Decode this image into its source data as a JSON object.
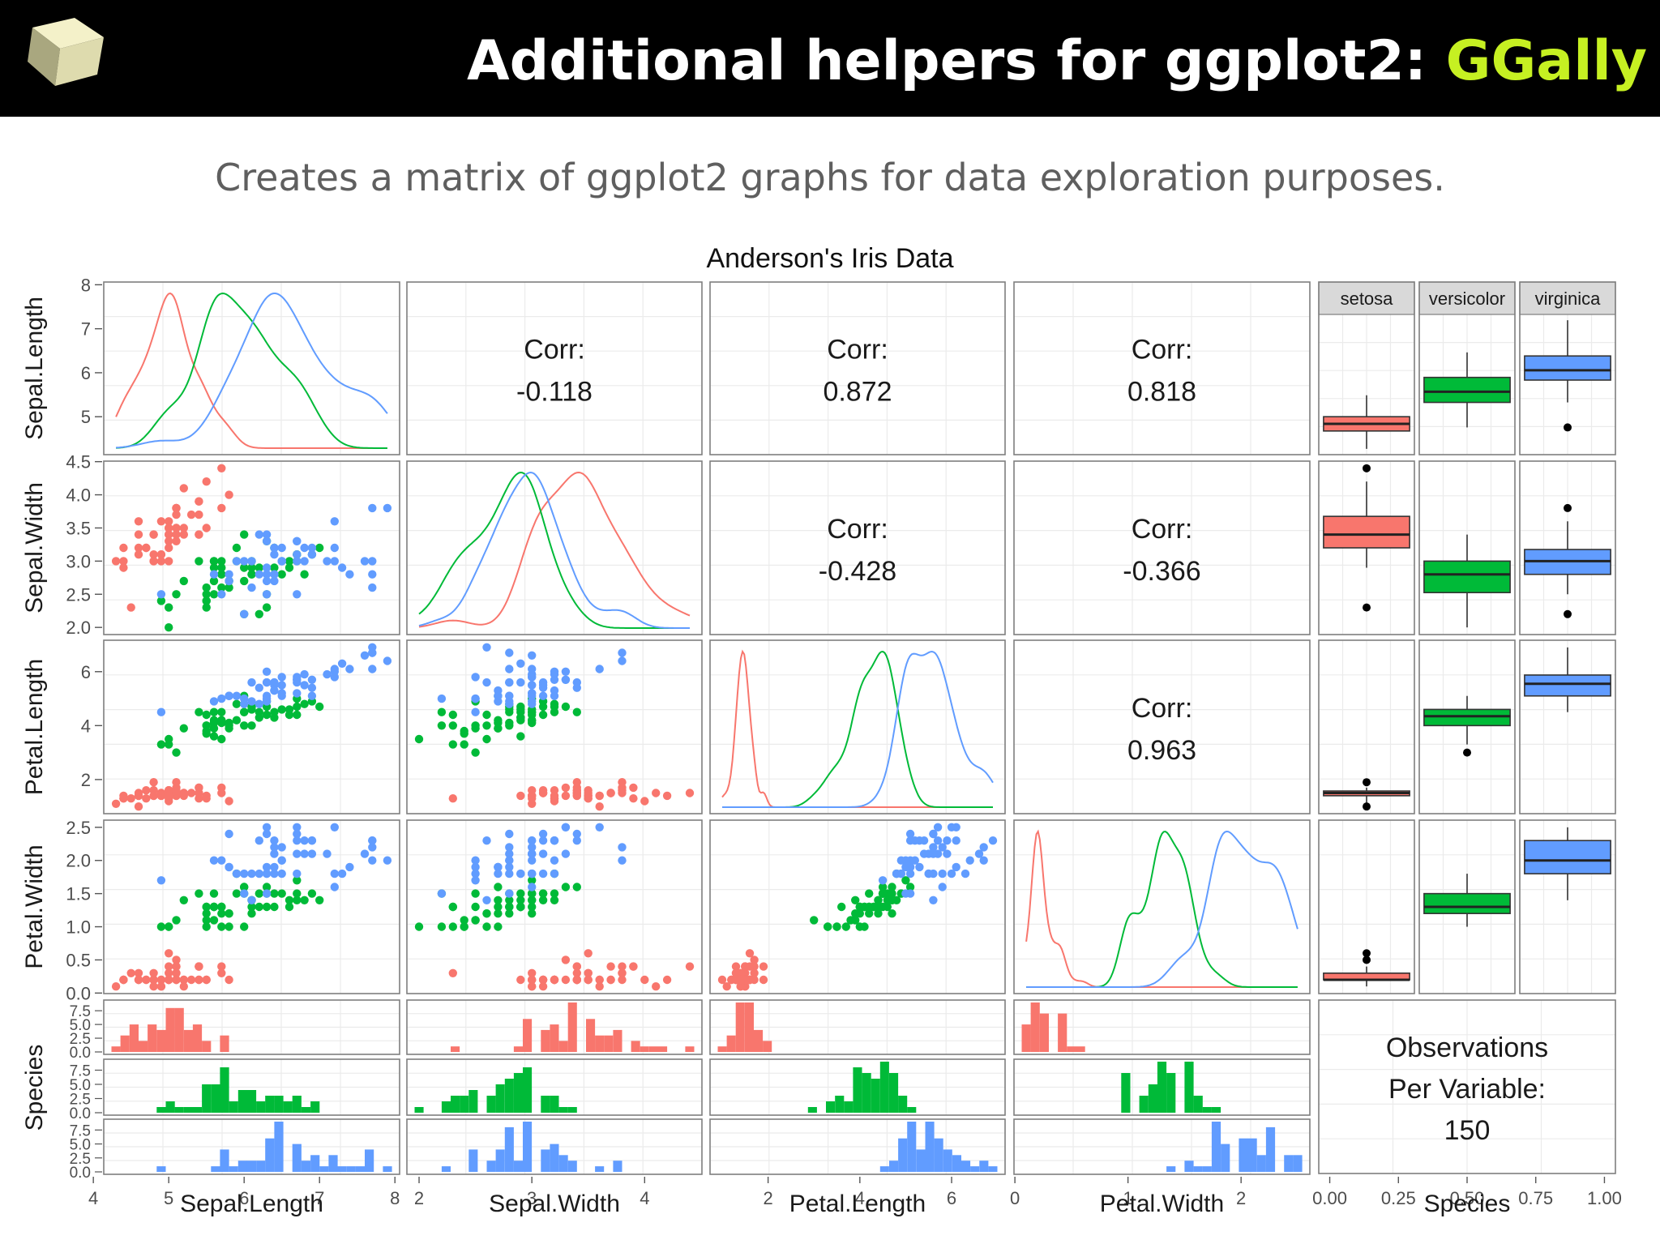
{
  "slide": {
    "title_main": "Additional helpers for ggplot2: ",
    "title_accent": "GGally",
    "subtitle": "Creates a matrix of ggplot2 graphs for data exploration purposes.",
    "colors": {
      "background_bar": "#000000",
      "title": "#ffffff",
      "accent": "#c6f022",
      "subtitle": "#5f5f5f"
    },
    "icons": [
      "cube-icon"
    ]
  },
  "chart_data": {
    "type": "scatterplot-matrix",
    "title": "Anderson's Iris Data",
    "variables": [
      "Sepal.Length",
      "Sepal.Width",
      "Petal.Length",
      "Petal.Width",
      "Species"
    ],
    "species": [
      "setosa",
      "versicolor",
      "virginica"
    ],
    "colors": {
      "setosa": "#f8766d",
      "versicolor": "#00ba38",
      "virginica": "#619cff"
    },
    "axes": {
      "Sepal.Length": {
        "range": [
          4.3,
          7.9
        ],
        "ticks": [
          "4",
          "5",
          "6",
          "7",
          "8"
        ],
        "y_ticks": [
          "5",
          "6",
          "7",
          "8"
        ]
      },
      "Sepal.Width": {
        "range": [
          2.0,
          4.4
        ],
        "ticks": [
          "2",
          "3",
          "4"
        ],
        "y_ticks": [
          "2.0",
          "2.5",
          "3.0",
          "3.5",
          "4.0",
          "4.5"
        ]
      },
      "Petal.Length": {
        "range": [
          1.0,
          6.9
        ],
        "ticks": [
          "2",
          "4",
          "6"
        ],
        "y_ticks": [
          "2",
          "4",
          "6"
        ]
      },
      "Petal.Width": {
        "range": [
          0.1,
          2.5
        ],
        "ticks": [
          "0",
          "1",
          "2"
        ],
        "y_ticks": [
          "0.0",
          "0.5",
          "1.0",
          "1.5",
          "2.0",
          "2.5"
        ]
      },
      "Species": {
        "range": [
          0,
          1
        ],
        "ticks": [
          "0.00",
          "0.25",
          "0.50",
          "0.75",
          "1.00"
        ],
        "hist_ticks": [
          "0.0",
          "2.5",
          "5.0",
          "7.5"
        ]
      }
    },
    "correlations": [
      {
        "row": "Sepal.Length",
        "col": "Sepal.Width",
        "label": "Corr:",
        "value": "-0.118"
      },
      {
        "row": "Sepal.Length",
        "col": "Petal.Length",
        "label": "Corr:",
        "value": "0.872"
      },
      {
        "row": "Sepal.Length",
        "col": "Petal.Width",
        "label": "Corr:",
        "value": "0.818"
      },
      {
        "row": "Sepal.Width",
        "col": "Petal.Length",
        "label": "Corr:",
        "value": "-0.428"
      },
      {
        "row": "Sepal.Width",
        "col": "Petal.Width",
        "label": "Corr:",
        "value": "-0.366"
      },
      {
        "row": "Petal.Length",
        "col": "Petal.Width",
        "label": "Corr:",
        "value": "0.963"
      }
    ],
    "observations": {
      "line1": "Observations",
      "line2": "Per Variable:",
      "value": "150"
    },
    "boxplots": {
      "Sepal.Length": {
        "setosa": [
          4.3,
          4.8,
          5.0,
          5.2,
          5.8
        ],
        "versicolor": [
          4.9,
          5.6,
          5.9,
          6.3,
          7.0
        ],
        "virginica": [
          5.6,
          6.225,
          6.5,
          6.9,
          7.9
        ]
      },
      "Sepal.Width": {
        "setosa": [
          2.9,
          3.2,
          3.4,
          3.675,
          4.2
        ],
        "versicolor": [
          2.0,
          2.525,
          2.8,
          3.0,
          3.4
        ],
        "virginica": [
          2.5,
          2.8,
          3.0,
          3.175,
          3.6
        ]
      },
      "Petal.Length": {
        "setosa": [
          1.1,
          1.4,
          1.5,
          1.575,
          1.7
        ],
        "versicolor": [
          3.3,
          4.0,
          4.35,
          4.6,
          5.1
        ],
        "virginica": [
          4.5,
          5.1,
          5.55,
          5.875,
          6.9
        ]
      },
      "Petal.Width": {
        "setosa": [
          0.1,
          0.2,
          0.2,
          0.3,
          0.4
        ],
        "versicolor": [
          1.0,
          1.2,
          1.3,
          1.5,
          1.8
        ],
        "virginica": [
          1.4,
          1.8,
          2.0,
          2.3,
          2.5
        ]
      }
    },
    "boxplot_outliers": {
      "Sepal.Length": {
        "virginica": [
          4.9
        ]
      },
      "Sepal.Width": {
        "setosa": [
          2.3,
          4.4
        ],
        "virginica": [
          2.2,
          3.8
        ]
      },
      "Petal.Length": {
        "setosa": [
          1.0,
          1.9
        ],
        "versicolor": [
          3.0
        ]
      },
      "Petal.Width": {
        "setosa": [
          0.5,
          0.6
        ]
      }
    },
    "observations_by_species": {
      "setosa": [
        [
          5.1,
          3.5,
          1.4,
          0.2
        ],
        [
          4.9,
          3.0,
          1.4,
          0.2
        ],
        [
          4.7,
          3.2,
          1.3,
          0.2
        ],
        [
          4.6,
          3.1,
          1.5,
          0.2
        ],
        [
          5.0,
          3.6,
          1.4,
          0.2
        ],
        [
          5.4,
          3.9,
          1.7,
          0.4
        ],
        [
          4.6,
          3.4,
          1.4,
          0.3
        ],
        [
          5.0,
          3.4,
          1.5,
          0.2
        ],
        [
          4.4,
          2.9,
          1.4,
          0.2
        ],
        [
          4.9,
          3.1,
          1.5,
          0.1
        ],
        [
          5.4,
          3.7,
          1.5,
          0.2
        ],
        [
          4.8,
          3.4,
          1.6,
          0.2
        ],
        [
          4.8,
          3.0,
          1.4,
          0.1
        ],
        [
          4.3,
          3.0,
          1.1,
          0.1
        ],
        [
          5.8,
          4.0,
          1.2,
          0.2
        ],
        [
          5.7,
          4.4,
          1.5,
          0.4
        ],
        [
          5.4,
          3.9,
          1.3,
          0.4
        ],
        [
          5.1,
          3.5,
          1.4,
          0.3
        ],
        [
          5.7,
          3.8,
          1.7,
          0.3
        ],
        [
          5.1,
          3.8,
          1.5,
          0.3
        ],
        [
          5.4,
          3.4,
          1.7,
          0.2
        ],
        [
          5.1,
          3.7,
          1.5,
          0.4
        ],
        [
          4.6,
          3.6,
          1.0,
          0.2
        ],
        [
          5.1,
          3.3,
          1.7,
          0.5
        ],
        [
          4.8,
          3.4,
          1.9,
          0.2
        ],
        [
          5.0,
          3.0,
          1.6,
          0.2
        ],
        [
          5.0,
          3.4,
          1.6,
          0.4
        ],
        [
          5.2,
          3.5,
          1.5,
          0.2
        ],
        [
          5.2,
          3.4,
          1.4,
          0.2
        ],
        [
          4.7,
          3.2,
          1.6,
          0.2
        ],
        [
          4.8,
          3.1,
          1.6,
          0.2
        ],
        [
          5.4,
          3.4,
          1.5,
          0.4
        ],
        [
          5.2,
          4.1,
          1.5,
          0.1
        ],
        [
          5.5,
          4.2,
          1.4,
          0.2
        ],
        [
          4.9,
          3.1,
          1.5,
          0.2
        ],
        [
          5.0,
          3.2,
          1.2,
          0.2
        ],
        [
          5.5,
          3.5,
          1.3,
          0.2
        ],
        [
          4.9,
          3.6,
          1.4,
          0.1
        ],
        [
          4.4,
          3.0,
          1.3,
          0.2
        ],
        [
          5.1,
          3.4,
          1.5,
          0.2
        ],
        [
          5.0,
          3.5,
          1.3,
          0.3
        ],
        [
          4.5,
          2.3,
          1.3,
          0.3
        ],
        [
          4.4,
          3.2,
          1.3,
          0.2
        ],
        [
          5.0,
          3.5,
          1.6,
          0.6
        ],
        [
          5.1,
          3.8,
          1.9,
          0.4
        ],
        [
          4.8,
          3.0,
          1.4,
          0.3
        ],
        [
          5.1,
          3.8,
          1.6,
          0.2
        ],
        [
          4.6,
          3.2,
          1.4,
          0.2
        ],
        [
          5.3,
          3.7,
          1.5,
          0.2
        ],
        [
          5.0,
          3.3,
          1.4,
          0.2
        ]
      ],
      "versicolor": [
        [
          7.0,
          3.2,
          4.7,
          1.4
        ],
        [
          6.4,
          3.2,
          4.5,
          1.5
        ],
        [
          6.9,
          3.1,
          4.9,
          1.5
        ],
        [
          5.5,
          2.3,
          4.0,
          1.3
        ],
        [
          6.5,
          2.8,
          4.6,
          1.5
        ],
        [
          5.7,
          2.8,
          4.5,
          1.3
        ],
        [
          6.3,
          3.3,
          4.7,
          1.6
        ],
        [
          4.9,
          2.4,
          3.3,
          1.0
        ],
        [
          6.6,
          2.9,
          4.6,
          1.3
        ],
        [
          5.2,
          2.7,
          3.9,
          1.4
        ],
        [
          5.0,
          2.0,
          3.5,
          1.0
        ],
        [
          5.9,
          3.0,
          4.2,
          1.5
        ],
        [
          6.0,
          2.2,
          4.0,
          1.0
        ],
        [
          6.1,
          2.9,
          4.7,
          1.4
        ],
        [
          5.6,
          2.9,
          3.6,
          1.3
        ],
        [
          6.7,
          3.1,
          4.4,
          1.4
        ],
        [
          5.6,
          3.0,
          4.5,
          1.5
        ],
        [
          5.8,
          2.7,
          4.1,
          1.0
        ],
        [
          6.2,
          2.2,
          4.5,
          1.5
        ],
        [
          5.6,
          2.5,
          3.9,
          1.1
        ],
        [
          5.9,
          3.2,
          4.8,
          1.8
        ],
        [
          6.1,
          2.8,
          4.0,
          1.3
        ],
        [
          6.3,
          2.5,
          4.9,
          1.5
        ],
        [
          6.1,
          2.8,
          4.7,
          1.2
        ],
        [
          6.4,
          2.9,
          4.3,
          1.3
        ],
        [
          6.6,
          3.0,
          4.4,
          1.4
        ],
        [
          6.8,
          2.8,
          4.8,
          1.4
        ],
        [
          6.7,
          3.0,
          5.0,
          1.7
        ],
        [
          6.0,
          2.9,
          4.5,
          1.5
        ],
        [
          5.7,
          2.6,
          3.5,
          1.0
        ],
        [
          5.5,
          2.4,
          3.8,
          1.1
        ],
        [
          5.5,
          2.4,
          3.7,
          1.0
        ],
        [
          5.8,
          2.7,
          3.9,
          1.2
        ],
        [
          6.0,
          2.7,
          5.1,
          1.6
        ],
        [
          5.4,
          3.0,
          4.5,
          1.5
        ],
        [
          6.0,
          3.4,
          4.5,
          1.6
        ],
        [
          6.7,
          3.1,
          4.7,
          1.5
        ],
        [
          6.3,
          2.3,
          4.4,
          1.3
        ],
        [
          5.6,
          3.0,
          4.1,
          1.3
        ],
        [
          5.5,
          2.5,
          4.0,
          1.3
        ],
        [
          5.5,
          2.6,
          4.4,
          1.2
        ],
        [
          6.1,
          3.0,
          4.6,
          1.4
        ],
        [
          5.8,
          2.6,
          4.0,
          1.2
        ],
        [
          5.0,
          2.3,
          3.3,
          1.0
        ],
        [
          5.6,
          2.7,
          4.2,
          1.3
        ],
        [
          5.7,
          3.0,
          4.2,
          1.2
        ],
        [
          5.7,
          2.9,
          4.2,
          1.3
        ],
        [
          6.2,
          2.9,
          4.3,
          1.3
        ],
        [
          5.1,
          2.5,
          3.0,
          1.1
        ],
        [
          5.7,
          2.8,
          4.1,
          1.3
        ]
      ],
      "virginica": [
        [
          6.3,
          3.3,
          6.0,
          2.5
        ],
        [
          5.8,
          2.7,
          5.1,
          1.9
        ],
        [
          7.1,
          3.0,
          5.9,
          2.1
        ],
        [
          6.3,
          2.9,
          5.6,
          1.8
        ],
        [
          6.5,
          3.0,
          5.8,
          2.2
        ],
        [
          7.6,
          3.0,
          6.6,
          2.1
        ],
        [
          4.9,
          2.5,
          4.5,
          1.7
        ],
        [
          7.3,
          2.9,
          6.3,
          1.8
        ],
        [
          6.7,
          2.5,
          5.8,
          1.8
        ],
        [
          7.2,
          3.6,
          6.1,
          2.5
        ],
        [
          6.5,
          3.2,
          5.1,
          2.0
        ],
        [
          6.4,
          2.7,
          5.3,
          1.9
        ],
        [
          6.8,
          3.0,
          5.5,
          2.1
        ],
        [
          5.7,
          2.5,
          5.0,
          2.0
        ],
        [
          5.8,
          2.8,
          5.1,
          2.4
        ],
        [
          6.4,
          3.2,
          5.3,
          2.3
        ],
        [
          6.5,
          3.0,
          5.5,
          1.8
        ],
        [
          7.7,
          3.8,
          6.7,
          2.2
        ],
        [
          7.7,
          2.6,
          6.9,
          2.3
        ],
        [
          6.0,
          2.2,
          5.0,
          1.5
        ],
        [
          6.9,
          3.2,
          5.7,
          2.3
        ],
        [
          5.6,
          2.8,
          4.9,
          2.0
        ],
        [
          7.7,
          2.8,
          6.7,
          2.0
        ],
        [
          6.3,
          2.7,
          4.9,
          1.8
        ],
        [
          6.7,
          3.3,
          5.7,
          2.1
        ],
        [
          7.2,
          3.2,
          6.0,
          1.8
        ],
        [
          6.2,
          2.8,
          4.8,
          1.8
        ],
        [
          6.1,
          3.0,
          4.9,
          1.8
        ],
        [
          6.4,
          2.8,
          5.6,
          2.1
        ],
        [
          7.2,
          3.0,
          5.8,
          1.6
        ],
        [
          7.4,
          2.8,
          6.1,
          1.9
        ],
        [
          7.9,
          3.8,
          6.4,
          2.0
        ],
        [
          6.4,
          2.8,
          5.6,
          2.2
        ],
        [
          6.3,
          2.8,
          5.1,
          1.5
        ],
        [
          6.1,
          2.6,
          5.6,
          1.4
        ],
        [
          7.7,
          3.0,
          6.1,
          2.3
        ],
        [
          6.3,
          3.4,
          5.6,
          2.4
        ],
        [
          6.4,
          3.1,
          5.5,
          1.8
        ],
        [
          6.0,
          3.0,
          4.8,
          1.8
        ],
        [
          6.9,
          3.1,
          5.4,
          2.1
        ],
        [
          6.7,
          3.1,
          5.6,
          2.4
        ],
        [
          6.9,
          3.1,
          5.1,
          2.3
        ],
        [
          5.8,
          2.7,
          5.1,
          1.9
        ],
        [
          6.8,
          3.2,
          5.9,
          2.3
        ],
        [
          6.7,
          3.3,
          5.7,
          2.5
        ],
        [
          6.7,
          3.0,
          5.2,
          2.3
        ],
        [
          6.3,
          2.5,
          5.0,
          1.9
        ],
        [
          6.5,
          3.0,
          5.2,
          2.0
        ],
        [
          6.2,
          3.4,
          5.4,
          2.3
        ],
        [
          5.9,
          3.0,
          5.1,
          1.8
        ]
      ]
    }
  }
}
